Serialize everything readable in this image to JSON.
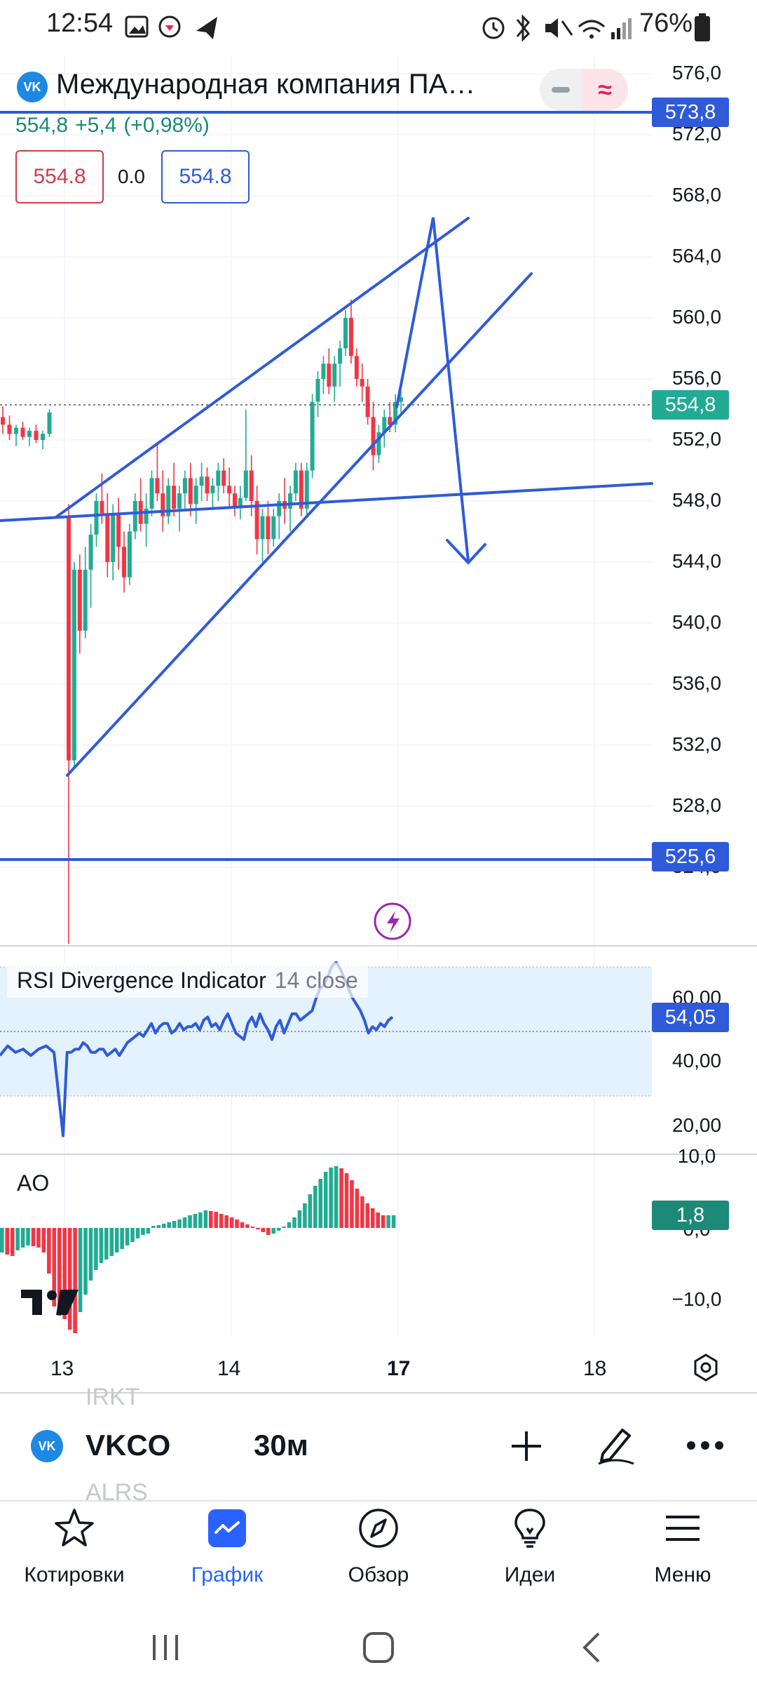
{
  "status_bar": {
    "time": "12:54",
    "battery": "76%"
  },
  "header": {
    "symbol_logo": "VK",
    "title": "Международная компания ПА…",
    "last_price": "554,8",
    "change": "+5,4",
    "change_pct": "(+0,98%)",
    "bid": "554.8",
    "spread": "0.0",
    "ask": "554.8",
    "toggle_icon": "≈"
  },
  "price_axis": {
    "labels": [
      "576,0",
      "572,0",
      "568,0",
      "564,0",
      "560,0",
      "556,0",
      "552,0",
      "548,0",
      "544,0",
      "540,0",
      "536,0",
      "532,0",
      "528,0",
      "524,0"
    ],
    "tags": {
      "line_top": "573,8",
      "current": "554,8",
      "line_bottom": "525,6"
    }
  },
  "chart_data": {
    "type": "candlestick",
    "symbol": "VKCO",
    "interval": "30м",
    "y_range": [
      521.0,
      577.0
    ],
    "x_ticks": [
      "13",
      "14",
      "17",
      "18"
    ],
    "last_price": 554.8,
    "horizontal_lines": [
      573.8,
      525.6
    ],
    "candles": [
      [
        553.5,
        554.2,
        552.4,
        553.0
      ],
      [
        553.0,
        553.6,
        552.0,
        552.4
      ],
      [
        552.4,
        553.0,
        551.6,
        552.8
      ],
      [
        552.8,
        553.2,
        552.0,
        552.2
      ],
      [
        552.2,
        552.8,
        551.6,
        552.6
      ],
      [
        552.6,
        553.0,
        551.8,
        552.0
      ],
      [
        552.0,
        552.6,
        551.4,
        552.4
      ],
      [
        552.4,
        554.0,
        552.2,
        553.8
      ],
      [
        547.0,
        547.8,
        512.0,
        531.0
      ],
      [
        531.0,
        544.0,
        530.5,
        543.5
      ],
      [
        543.5,
        544.5,
        538.0,
        539.5
      ],
      [
        539.5,
        545.0,
        539.0,
        543.5
      ],
      [
        543.5,
        546.5,
        541.0,
        545.8
      ],
      [
        545.8,
        548.5,
        545.0,
        548.0
      ],
      [
        548.0,
        549.8,
        546.5,
        547.2
      ],
      [
        547.2,
        548.5,
        543.0,
        544.0
      ],
      [
        544.0,
        547.8,
        542.8,
        547.2
      ],
      [
        547.2,
        548.2,
        543.5,
        545.0
      ],
      [
        545.0,
        546.0,
        542.0,
        543.0
      ],
      [
        543.0,
        546.5,
        542.5,
        546.0
      ],
      [
        546.0,
        548.5,
        545.5,
        548.0
      ],
      [
        548.0,
        549.5,
        546.0,
        546.5
      ],
      [
        546.5,
        548.5,
        545.0,
        547.5
      ],
      [
        547.5,
        550.0,
        547.0,
        549.5
      ],
      [
        549.5,
        551.8,
        548.0,
        548.5
      ],
      [
        548.5,
        550.0,
        546.0,
        547.0
      ],
      [
        547.0,
        549.5,
        546.5,
        549.0
      ],
      [
        549.0,
        550.5,
        547.0,
        547.5
      ],
      [
        547.5,
        549.0,
        546.0,
        548.5
      ],
      [
        548.5,
        550.0,
        547.5,
        549.5
      ],
      [
        549.5,
        550.5,
        547.0,
        547.8
      ],
      [
        547.8,
        549.5,
        546.5,
        549.0
      ],
      [
        549.0,
        550.5,
        548.0,
        549.6
      ],
      [
        549.6,
        550.2,
        548.0,
        548.5
      ],
      [
        548.5,
        549.5,
        547.5,
        549.0
      ],
      [
        549.0,
        550.5,
        548.0,
        550.0
      ],
      [
        550.0,
        550.8,
        548.5,
        549.0
      ],
      [
        549.0,
        550.2,
        547.5,
        548.5
      ],
      [
        548.5,
        549.0,
        547.0,
        547.6
      ],
      [
        547.6,
        549.0,
        546.8,
        548.2
      ],
      [
        548.2,
        554.0,
        548.0,
        550.0
      ],
      [
        550.0,
        551.0,
        547.0,
        548.0
      ],
      [
        548.0,
        549.0,
        544.5,
        545.5
      ],
      [
        545.5,
        547.5,
        544.0,
        547.0
      ],
      [
        547.0,
        548.0,
        544.5,
        545.5
      ],
      [
        545.5,
        547.5,
        545.0,
        547.0
      ],
      [
        547.0,
        548.5,
        545.5,
        548.0
      ],
      [
        548.0,
        549.5,
        546.5,
        547.5
      ],
      [
        547.5,
        549.0,
        546.0,
        548.5
      ],
      [
        548.5,
        550.5,
        548.0,
        550.0
      ],
      [
        550.0,
        550.5,
        547.0,
        547.5
      ],
      [
        547.5,
        550.5,
        547.0,
        550.0
      ],
      [
        550.0,
        555.0,
        549.5,
        554.5
      ],
      [
        554.5,
        556.5,
        553.5,
        556.0
      ],
      [
        556.0,
        557.5,
        555.0,
        557.0
      ],
      [
        557.0,
        558.0,
        555.0,
        555.5
      ],
      [
        555.5,
        557.5,
        554.5,
        557.0
      ],
      [
        557.0,
        558.5,
        555.5,
        558.0
      ],
      [
        558.0,
        560.5,
        557.5,
        560.0
      ],
      [
        560.0,
        561.2,
        557.0,
        557.5
      ],
      [
        557.5,
        558.0,
        555.5,
        556.0
      ],
      [
        556.0,
        557.0,
        554.5,
        555.5
      ],
      [
        555.5,
        556.0,
        553.0,
        553.5
      ],
      [
        553.5,
        554.5,
        550.0,
        551.0
      ],
      [
        551.0,
        553.0,
        550.5,
        552.5
      ],
      [
        552.5,
        554.0,
        551.5,
        553.5
      ],
      [
        553.5,
        554.5,
        552.5,
        553.0
      ],
      [
        553.0,
        555.0,
        552.5,
        554.5
      ],
      [
        554.5,
        555.2,
        553.8,
        554.8
      ]
    ],
    "rsi": {
      "name": "RSI Divergence Indicator",
      "params": "14 close",
      "last": "54,05",
      "axis": [
        "60,00",
        "40,00",
        "20,00"
      ],
      "values": [
        42,
        45,
        43,
        44,
        42,
        44,
        45,
        43,
        44,
        43,
        43,
        44,
        44,
        46,
        45,
        43,
        43,
        44,
        44,
        42,
        43,
        44,
        42,
        44,
        46,
        47,
        48,
        49,
        48,
        50,
        52,
        49,
        51,
        52,
        52,
        49,
        50,
        52,
        50,
        51,
        51,
        52,
        50,
        53,
        54,
        51,
        52,
        50,
        53,
        55,
        52,
        49,
        48,
        47,
        52,
        54,
        51,
        55,
        52,
        50,
        47,
        51,
        53,
        49,
        52,
        55,
        55,
        53,
        54,
        55,
        56,
        60,
        63,
        64,
        67,
        70,
        71,
        69,
        66,
        63,
        60,
        58,
        56,
        53,
        49,
        51,
        50,
        52,
        51,
        53,
        54
      ]
    },
    "ao": {
      "name": "AO",
      "last": "1,8",
      "axis": [
        "10,0",
        "0,0",
        "−10,0"
      ],
      "values": [
        -3.5,
        -3.8,
        -4.0,
        -3.2,
        -2.8,
        -2.5,
        -2.6,
        -2.8,
        -3.5,
        -6.5,
        -11.2,
        -12.5,
        -13.0,
        -14.5,
        -15.0,
        -12.0,
        -9.5,
        -7.5,
        -6.0,
        -5.0,
        -4.5,
        -4.0,
        -3.5,
        -3.0,
        -2.5,
        -2.0,
        -1.5,
        -1.0,
        -0.8,
        0.3,
        0.4,
        0.6,
        0.8,
        1.0,
        1.2,
        1.5,
        1.8,
        2.0,
        2.2,
        2.5,
        2.4,
        2.3,
        2.0,
        1.8,
        1.5,
        1.2,
        0.8,
        0.5,
        0.2,
        -0.2,
        -0.6,
        -1.0,
        -0.8,
        -0.4,
        0.2,
        0.8,
        1.5,
        2.5,
        3.5,
        4.8,
        6.0,
        7.0,
        8.0,
        8.6,
        8.8,
        8.5,
        7.8,
        6.8,
        5.6,
        4.5,
        3.5,
        2.8,
        2.2,
        1.8,
        1.8,
        1.8
      ]
    }
  },
  "time_axis": [
    "13",
    "14",
    "17",
    "18"
  ],
  "toolbar": {
    "symbol_logo": "VK",
    "ticker": "VKCO",
    "interval": "30м",
    "ghost_above": "IRKT",
    "ghost_below": "ALRS"
  },
  "nav": [
    {
      "label": "Котировки",
      "icon": "star-icon"
    },
    {
      "label": "График",
      "icon": "chart-icon"
    },
    {
      "label": "Обзор",
      "icon": "compass-icon"
    },
    {
      "label": "Идеи",
      "icon": "lightbulb-icon"
    },
    {
      "label": "Меню",
      "icon": "menu-icon"
    }
  ],
  "colors": {
    "up": "#22ab94",
    "down": "#f23645",
    "accent": "#2962ff",
    "drawing": "#2f5bd9",
    "rsi_band": "#e3f2fd"
  }
}
